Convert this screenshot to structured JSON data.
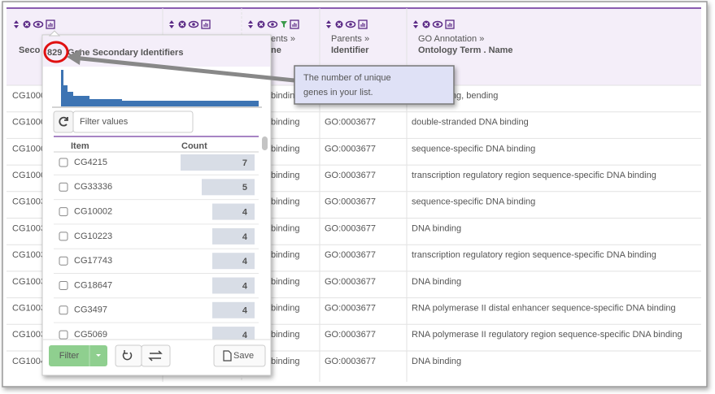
{
  "table": {
    "headers": [
      [
        null,
        "Seco"
      ],
      [],
      [
        "ents »",
        "ne"
      ],
      [
        "Parents »",
        "Identifier"
      ],
      [
        "GO Annotation »",
        "Ontology Term . Name"
      ]
    ],
    "rows": [
      [
        "CG1000",
        "binding",
        null,
        "DNA binding, bending"
      ],
      [
        "CG1000",
        "binding",
        "GO:0003677",
        "double-stranded DNA binding"
      ],
      [
        "CG1000",
        "binding",
        "GO:0003677",
        "sequence-specific DNA binding"
      ],
      [
        "CG1000",
        "binding",
        "GO:0003677",
        "transcription regulatory region sequence-specific DNA binding"
      ],
      [
        "CG1003",
        "binding",
        "GO:0003677",
        "sequence-specific DNA binding"
      ],
      [
        "CG1003",
        "binding",
        "GO:0003677",
        "DNA binding"
      ],
      [
        "CG1003",
        "binding",
        "GO:0003677",
        "transcription regulatory region sequence-specific DNA binding"
      ],
      [
        "CG1003",
        "binding",
        "GO:0003677",
        "DNA binding"
      ],
      [
        "CG1003",
        "binding",
        "GO:0003677",
        "RNA polymerase II distal enhancer sequence-specific DNA binding"
      ],
      [
        "CG1003",
        "binding",
        "GO:0003677",
        "RNA polymerase II regulatory region sequence-specific DNA binding"
      ],
      [
        "CG1004",
        "binding",
        "GO:0003677",
        "DNA binding"
      ]
    ]
  },
  "popup": {
    "count": "829",
    "title": "Gene Secondary Identifiers",
    "filter_placeholder": "Filter values",
    "columns": [
      "Item",
      "Count"
    ],
    "items": [
      {
        "name": "CG4215",
        "count": 7
      },
      {
        "name": "CG33336",
        "count": 5
      },
      {
        "name": "CG10002",
        "count": 4
      },
      {
        "name": "CG10223",
        "count": 4
      },
      {
        "name": "CG17743",
        "count": 4
      },
      {
        "name": "CG18647",
        "count": 4
      },
      {
        "name": "CG3497",
        "count": 4
      },
      {
        "name": "CG5069",
        "count": 4
      }
    ],
    "buttons": {
      "filter": "Filter",
      "save": "Save"
    }
  },
  "callout": {
    "lines": [
      "The number of unique",
      "genes in your list."
    ]
  }
}
